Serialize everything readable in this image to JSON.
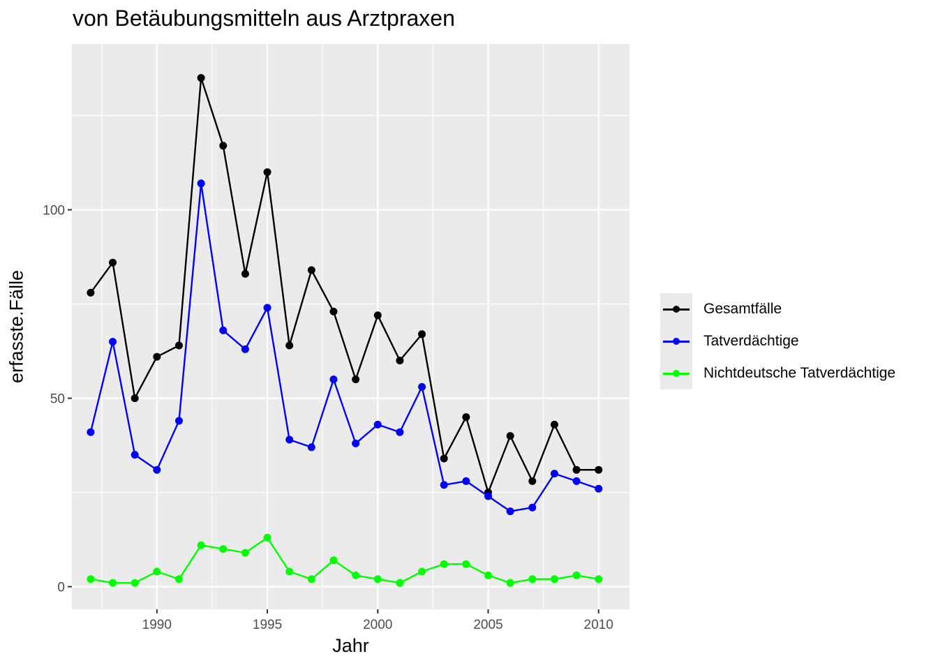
{
  "chart_data": {
    "type": "line",
    "title": "von Betäubungsmitteln aus Arztpraxen",
    "xlabel": "Jahr",
    "ylabel": "erfasste.Fälle",
    "x": [
      1987,
      1988,
      1989,
      1990,
      1991,
      1992,
      1993,
      1994,
      1995,
      1996,
      1997,
      1998,
      1999,
      2000,
      2001,
      2002,
      2003,
      2004,
      2005,
      2006,
      2007,
      2008,
      2009,
      2010
    ],
    "xlim": [
      1986.15,
      2011.4
    ],
    "ylim": [
      -6,
      144
    ],
    "x_ticks": [
      1990,
      1995,
      2000,
      2005,
      2010
    ],
    "y_ticks": [
      0,
      50,
      100
    ],
    "grid": true,
    "legend_position": "right",
    "series": [
      {
        "name": "Gesamtfälle",
        "color": "#000000",
        "values": [
          78,
          86,
          50,
          61,
          64,
          135,
          117,
          83,
          110,
          64,
          84,
          73,
          55,
          72,
          60,
          67,
          34,
          45,
          25,
          40,
          28,
          43,
          31,
          31
        ]
      },
      {
        "name": "Tatverdächtige",
        "color": "#0000ff",
        "values": [
          41,
          65,
          35,
          31,
          44,
          107,
          68,
          63,
          74,
          39,
          37,
          55,
          38,
          43,
          41,
          53,
          27,
          28,
          24,
          20,
          21,
          30,
          28,
          26
        ]
      },
      {
        "name": "Nichtdeutsche Tatverdächtige",
        "color": "#00ff00",
        "values": [
          2,
          1,
          1,
          4,
          2,
          11,
          10,
          9,
          13,
          4,
          2,
          7,
          3,
          2,
          1,
          4,
          6,
          6,
          3,
          1,
          2,
          2,
          3,
          2
        ]
      }
    ]
  }
}
